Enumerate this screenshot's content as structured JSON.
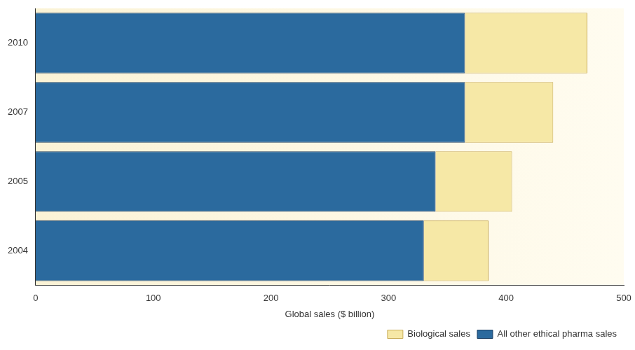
{
  "chart_data": {
    "type": "bar",
    "orientation": "horizontal",
    "stacked": true,
    "categories": [
      "2010",
      "2007",
      "2005",
      "2004"
    ],
    "series": [
      {
        "name": "All other ethical pharma sales",
        "color": "#2b6a9e",
        "values": [
          365,
          365,
          340,
          330
        ]
      },
      {
        "name": "Biological sales",
        "color": "#f6e8a6",
        "values": [
          104,
          75,
          65,
          55
        ]
      }
    ],
    "x_label": "Global sales ($ billion)",
    "xlim": [
      0,
      500
    ],
    "xticks": [
      0,
      100,
      200,
      300,
      400,
      500
    ],
    "grid": false,
    "legend": "bottom-right"
  }
}
